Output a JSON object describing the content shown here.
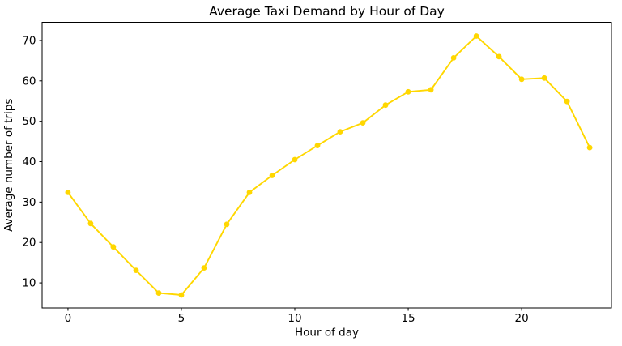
{
  "chart_data": {
    "type": "line",
    "title": "Average Taxi Demand by Hour of Day",
    "xlabel": "Hour of day",
    "ylabel": "Average number of trips",
    "x": [
      0,
      1,
      2,
      3,
      4,
      5,
      6,
      7,
      8,
      9,
      10,
      11,
      12,
      13,
      14,
      15,
      16,
      17,
      18,
      19,
      20,
      21,
      22,
      23
    ],
    "values": [
      32.4,
      24.7,
      18.9,
      13.1,
      7.5,
      7.0,
      13.7,
      24.5,
      32.4,
      36.6,
      40.5,
      44.0,
      47.4,
      49.6,
      54.0,
      57.3,
      57.8,
      65.7,
      71.1,
      66.0,
      60.4,
      60.7,
      54.9,
      43.5
    ],
    "xticks": [
      0,
      5,
      10,
      15,
      20
    ],
    "yticks": [
      10,
      20,
      30,
      40,
      50,
      60,
      70
    ],
    "xlim": [
      -1.14,
      23.96
    ],
    "ylim": [
      3.8,
      74.5
    ],
    "grid": false,
    "legend_position": "none",
    "line_color": "#FFD700",
    "marker_color": "#FFD700",
    "marker": "circle",
    "axis_color": "#000000",
    "background_color": "#ffffff"
  }
}
